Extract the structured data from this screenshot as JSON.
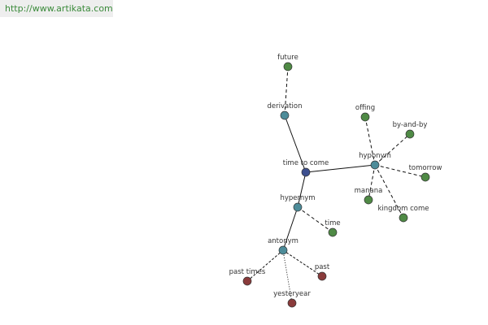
{
  "header": {
    "url": "http://www.artikata.com"
  },
  "nodes": [
    {
      "label": "time to come"
    },
    {
      "label": "derivation"
    },
    {
      "label": "future"
    },
    {
      "label": "hyponym"
    },
    {
      "label": "offing"
    },
    {
      "label": "by-and-by"
    },
    {
      "label": "tomorrow"
    },
    {
      "label": "manana"
    },
    {
      "label": "kingdom come"
    },
    {
      "label": "hypernym"
    },
    {
      "label": "time"
    },
    {
      "label": "antonym"
    },
    {
      "label": "past times"
    },
    {
      "label": "past"
    },
    {
      "label": "yesteryear"
    }
  ]
}
